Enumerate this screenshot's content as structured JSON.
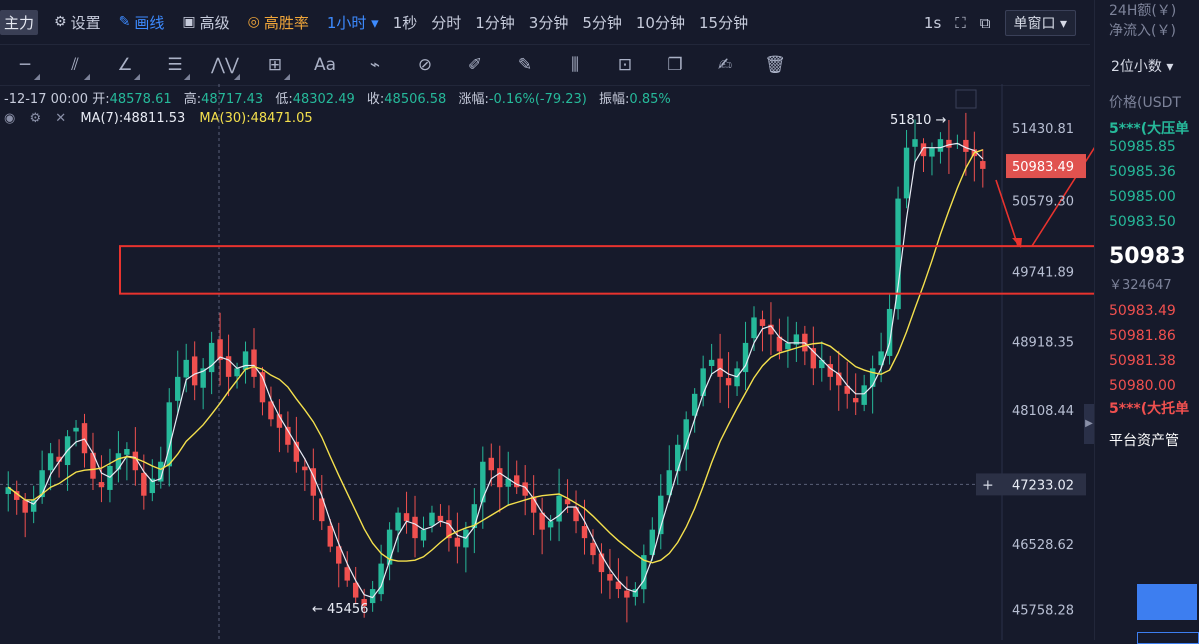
{
  "toolbar": {
    "main_label": "主力",
    "settings_label": "设置",
    "draw_label": "画线",
    "advanced_label": "高级",
    "winrate_label": "高胜率",
    "interval_selected": "1小时",
    "intervals": [
      "1秒",
      "分时",
      "1分钟",
      "3分钟",
      "5分钟",
      "10分钟",
      "15分钟"
    ],
    "right_label": "1s",
    "window_label": "单窗口"
  },
  "ohlc": {
    "date": "-12-17 00:00",
    "open_label": "开:",
    "open": "48578.61",
    "high_label": "高:",
    "high": "48717.43",
    "low_label": "低:",
    "low": "48302.49",
    "close_label": "收:",
    "close": "48506.58",
    "change_label": "涨幅:",
    "change": "-0.16%(-79.23)",
    "amp_label": "振幅:",
    "amp": "0.85%"
  },
  "ma": {
    "ma7": "MA(7):48811.53",
    "ma30": "MA(30):48471.05"
  },
  "colors": {
    "up": "#26b99a",
    "down": "#f0504f",
    "ma7": "#e9ecf5",
    "ma30": "#f4e04d",
    "annotation": "#e8332e",
    "background": "#161a2b"
  },
  "chart_data": {
    "type": "candlestick",
    "y_ticks": [
      "51430.81",
      "50579.30",
      "49741.89",
      "48918.35",
      "48108.44",
      "47233.02",
      "46528.62",
      "45758.28"
    ],
    "ylim": [
      45400,
      51950
    ],
    "current_price_label": "50983.49",
    "crosshair_price_label": "47233.02",
    "high_marker": "51810 →",
    "low_marker": "← 45456",
    "annotated_zone": [
      49480,
      50040
    ],
    "close_series": [
      47200,
      47050,
      46900,
      47050,
      47400,
      47600,
      47500,
      47800,
      47900,
      47600,
      47300,
      47200,
      47450,
      47600,
      47650,
      47400,
      47100,
      47300,
      47500,
      48200,
      48500,
      48700,
      48400,
      48600,
      48900,
      48700,
      48500,
      48600,
      48800,
      48500,
      48200,
      48000,
      47900,
      47700,
      47500,
      47400,
      47100,
      46800,
      46500,
      46300,
      46100,
      45900,
      45800,
      46000,
      46300,
      46700,
      46900,
      46800,
      46600,
      46700,
      46900,
      46800,
      46600,
      46500,
      46700,
      47000,
      47500,
      47400,
      47200,
      47300,
      47200,
      47100,
      46900,
      46700,
      46800,
      47100,
      47000,
      46800,
      46600,
      46400,
      46200,
      46100,
      46000,
      45900,
      46000,
      46400,
      46700,
      47100,
      47400,
      47700,
      48000,
      48300,
      48600,
      48700,
      48500,
      48400,
      48600,
      48900,
      49200,
      49100,
      49000,
      48800,
      48900,
      49000,
      48800,
      48600,
      48700,
      48500,
      48400,
      48300,
      48200,
      48400,
      48600,
      48800,
      49300,
      50600,
      51200,
      51300,
      51100,
      51200,
      51300,
      51200,
      51250,
      51150,
      51100,
      50950
    ],
    "series": [
      {
        "name": "MA(7)",
        "value": 48811.53
      },
      {
        "name": "MA(30)",
        "value": 48471.05
      }
    ]
  },
  "right_panel": {
    "h24": "24H额(￥)",
    "netflow": "净流入(￥)",
    "decimals": "2位小数",
    "price_header": "价格(USDT",
    "ask_label": "5***(大压单",
    "asks": [
      "50985.85",
      "50985.36",
      "50985.00",
      "50983.50"
    ],
    "last_price": "50983",
    "last_cny": "￥324647",
    "bids": [
      "50983.49",
      "50981.86",
      "50981.38",
      "50980.00"
    ],
    "bid_label": "5***(大托单",
    "asset_label": "平台资产管"
  },
  "icons": [
    "settings-icon",
    "pencil-icon",
    "briefcase-icon",
    "target-icon",
    "fullscreen-icon",
    "popout-icon"
  ]
}
